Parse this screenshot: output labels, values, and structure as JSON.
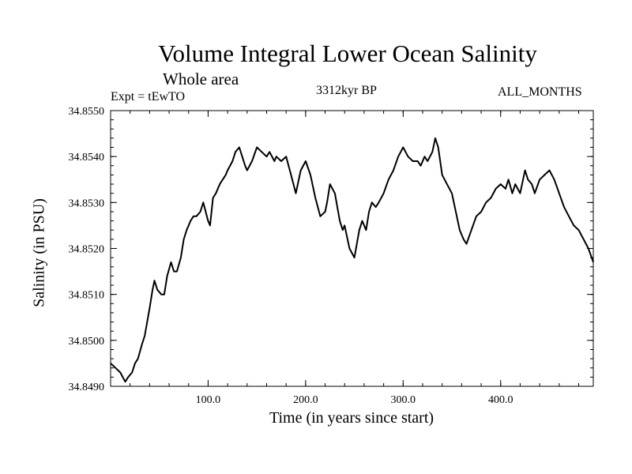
{
  "chart_data": {
    "type": "line",
    "title": "Volume Integral Lower Ocean Salinity",
    "subtitle": "Whole area",
    "experiment": "Expt = tEwTO",
    "period": "3312kyr BP",
    "months": "ALL_MONTHS",
    "xlabel": "Time (in years since start)",
    "ylabel": "Salinity (in PSU)",
    "xlim": [
      0,
      495
    ],
    "ylim": [
      34.849,
      34.855
    ],
    "xticks": [
      100,
      200,
      300,
      400
    ],
    "xtick_labels": [
      "100.0",
      "200.0",
      "300.0",
      "400.0"
    ],
    "yticks": [
      34.849,
      34.85,
      34.851,
      34.852,
      34.853,
      34.854,
      34.855
    ],
    "ytick_labels": [
      "34.8490",
      "34.8500",
      "34.8510",
      "34.8520",
      "34.8530",
      "34.8540",
      "34.8550"
    ],
    "series": [
      {
        "name": "Salinity",
        "color": "#000000",
        "x": [
          0,
          5,
          10,
          15,
          18,
          22,
          25,
          28,
          32,
          35,
          40,
          43,
          45,
          48,
          52,
          55,
          58,
          62,
          65,
          68,
          72,
          75,
          78,
          82,
          85,
          88,
          92,
          95,
          100,
          102,
          105,
          108,
          112,
          115,
          118,
          120,
          125,
          128,
          132,
          135,
          138,
          140,
          145,
          150,
          155,
          160,
          163,
          168,
          170,
          175,
          180,
          185,
          190,
          195,
          200,
          205,
          210,
          215,
          220,
          222,
          225,
          230,
          235,
          238,
          240,
          245,
          250,
          255,
          258,
          262,
          265,
          268,
          272,
          275,
          280,
          285,
          290,
          295,
          300,
          305,
          310,
          315,
          318,
          322,
          325,
          330,
          333,
          336,
          340,
          345,
          350,
          355,
          358,
          362,
          365,
          370,
          375,
          380,
          385,
          390,
          395,
          400,
          405,
          408,
          412,
          415,
          420,
          425,
          428,
          432,
          435,
          440,
          445,
          450,
          455,
          460,
          465,
          470,
          475,
          480,
          485,
          490,
          495
        ],
        "values": [
          34.8495,
          34.8494,
          34.8493,
          34.8491,
          34.8492,
          34.8493,
          34.8495,
          34.8496,
          34.8499,
          34.8501,
          34.8507,
          34.8511,
          34.8513,
          34.8511,
          34.851,
          34.851,
          34.8514,
          34.8517,
          34.8515,
          34.8515,
          34.8518,
          34.8522,
          34.8524,
          34.8526,
          34.8527,
          34.8527,
          34.8528,
          34.853,
          34.8526,
          34.8525,
          34.8531,
          34.8532,
          34.8534,
          34.8535,
          34.8536,
          34.8537,
          34.8539,
          34.8541,
          34.8542,
          34.854,
          34.8538,
          34.8537,
          34.8539,
          34.8542,
          34.8541,
          34.854,
          34.8541,
          34.8539,
          34.854,
          34.8539,
          34.854,
          34.8536,
          34.8532,
          34.8537,
          34.8539,
          34.8536,
          34.8531,
          34.8527,
          34.8528,
          34.853,
          34.8534,
          34.8532,
          34.8526,
          34.8524,
          34.8525,
          34.852,
          34.8518,
          34.8524,
          34.8526,
          34.8524,
          34.8528,
          34.853,
          34.8529,
          34.853,
          34.8532,
          34.8535,
          34.8537,
          34.854,
          34.8542,
          34.854,
          34.8539,
          34.8539,
          34.8538,
          34.854,
          34.8539,
          34.8541,
          34.8544,
          34.8542,
          34.8536,
          34.8534,
          34.8532,
          34.8527,
          34.8524,
          34.8522,
          34.8521,
          34.8524,
          34.8527,
          34.8528,
          34.853,
          34.8531,
          34.8533,
          34.8534,
          34.8533,
          34.8535,
          34.8532,
          34.8534,
          34.8532,
          34.8537,
          34.8535,
          34.8534,
          34.8532,
          34.8535,
          34.8536,
          34.8537,
          34.8535,
          34.8532,
          34.8529,
          34.8527,
          34.8525,
          34.8524,
          34.8522,
          34.852,
          34.8517
        ]
      }
    ]
  }
}
